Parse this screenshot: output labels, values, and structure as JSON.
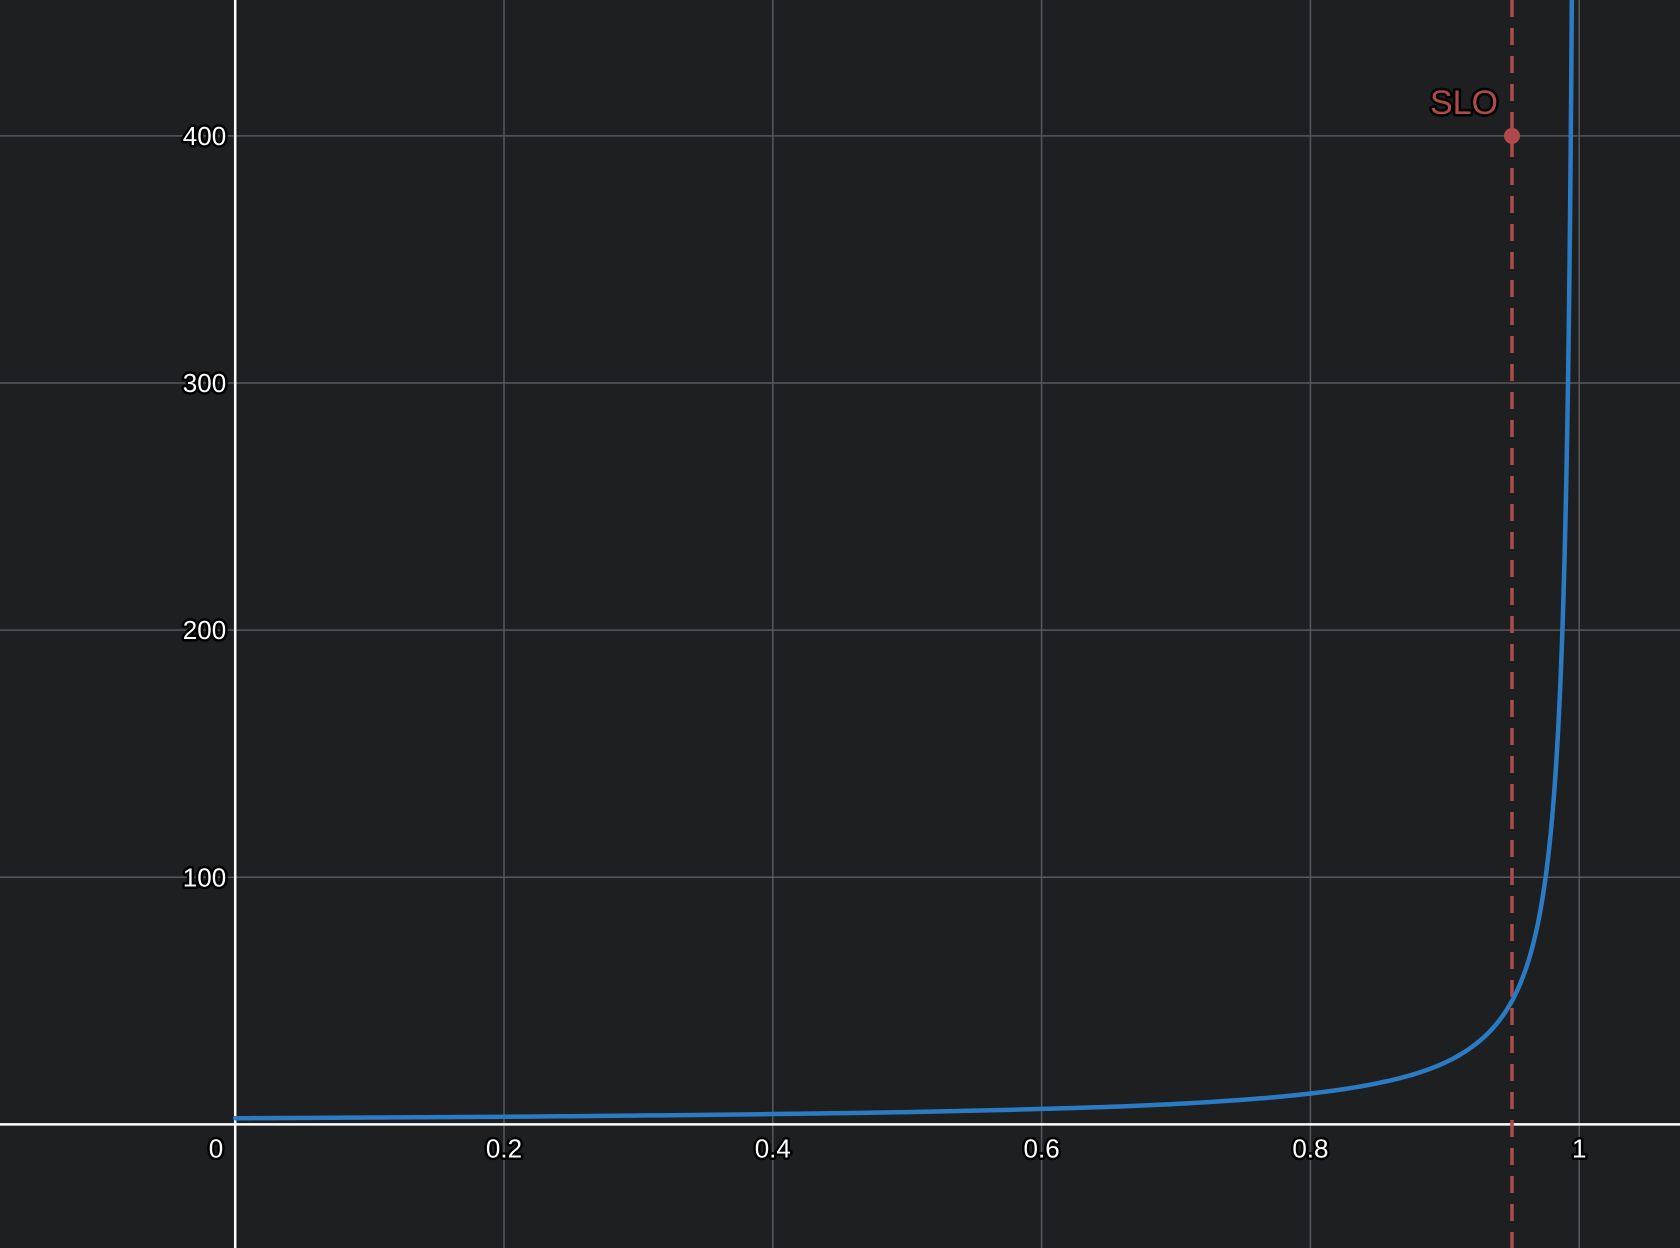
{
  "chart_data": {
    "type": "line",
    "title": "",
    "xlabel": "",
    "ylabel": "",
    "xlim": [
      -0.175,
      1.075
    ],
    "ylim": [
      -50,
      455
    ],
    "x_ticks": [
      0,
      0.2,
      0.4,
      0.6,
      0.8,
      1
    ],
    "x_tick_labels": [
      "0",
      "0.2",
      "0.4",
      "0.6",
      "0.8",
      "1"
    ],
    "y_ticks": [
      100,
      200,
      300,
      400
    ],
    "y_tick_labels": [
      "100",
      "200",
      "300",
      "400"
    ],
    "grid": true,
    "series": [
      {
        "color": "#2b7bc4",
        "points": [
          [
            0.0,
            2.5
          ],
          [
            0.1,
            2.8
          ],
          [
            0.2,
            3.1
          ],
          [
            0.3,
            3.6
          ],
          [
            0.4,
            4.2
          ],
          [
            0.5,
            5.0
          ],
          [
            0.6,
            6.3
          ],
          [
            0.65,
            7.1
          ],
          [
            0.7,
            8.3
          ],
          [
            0.75,
            10.0
          ],
          [
            0.8,
            12.5
          ],
          [
            0.85,
            16.7
          ],
          [
            0.88,
            20.8
          ],
          [
            0.9,
            25.0
          ],
          [
            0.92,
            31.3
          ],
          [
            0.94,
            41.7
          ],
          [
            0.95,
            50.0
          ],
          [
            0.96,
            62.5
          ],
          [
            0.97,
            83.3
          ],
          [
            0.975,
            100.0
          ],
          [
            0.98,
            125.0
          ],
          [
            0.985,
            166.7
          ],
          [
            0.988,
            208.3
          ],
          [
            0.99,
            250.0
          ],
          [
            0.992,
            312.5
          ],
          [
            0.994,
            416.7
          ],
          [
            0.995,
            500.0
          ]
        ]
      }
    ],
    "annotations": [
      {
        "label": "SLO",
        "color": "#b04a4a",
        "x": 0.95,
        "y": 400,
        "vertical_line": true,
        "line_style": "dashed"
      }
    ]
  }
}
